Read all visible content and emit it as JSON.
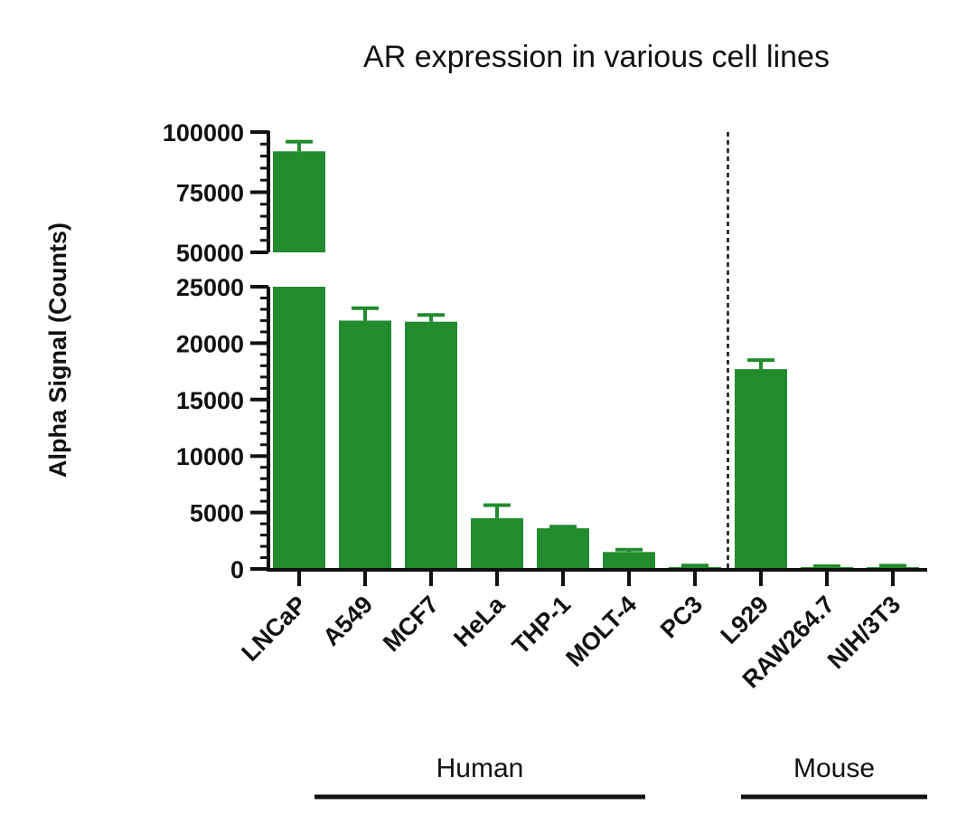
{
  "chart_data": {
    "type": "bar",
    "title": "AR expression in various cell lines",
    "xlabel": "",
    "ylabel": "Alpha Signal (Counts)",
    "categories": [
      "LNCaP",
      "A549",
      "MCF7",
      "HeLa",
      "THP-1",
      "MOLT-4",
      "PC3",
      "L929",
      "RAW264.7",
      "NIH/3T3"
    ],
    "values": [
      92000,
      22000,
      21900,
      4500,
      3600,
      1500,
      150,
      17700,
      50,
      40
    ],
    "errors": [
      4000,
      1100,
      600,
      1150,
      150,
      200,
      150,
      800,
      200,
      250
    ],
    "axis_break": {
      "lower_range": [
        0,
        25000
      ],
      "upper_range": [
        50000,
        100000
      ]
    },
    "y_ticks_lower": [
      0,
      5000,
      10000,
      15000,
      20000,
      25000
    ],
    "y_ticks_upper": [
      50000,
      75000,
      100000
    ],
    "y_tick_labels_lower": [
      "0",
      "5000",
      "10000",
      "15000",
      "20000",
      "25000"
    ],
    "y_tick_labels_upper": [
      "50000",
      "75000",
      "100000"
    ],
    "groups": [
      {
        "label": "Human",
        "categories": [
          "LNCaP",
          "A549",
          "MCF7",
          "HeLa",
          "THP-1",
          "MOLT-4",
          "PC3"
        ]
      },
      {
        "label": "Mouse",
        "categories": [
          "L929",
          "RAW264.7",
          "NIH/3T3"
        ]
      }
    ],
    "divider_after": "PC3",
    "bar_color": "#228b2e",
    "grid": false,
    "legend": "none"
  }
}
